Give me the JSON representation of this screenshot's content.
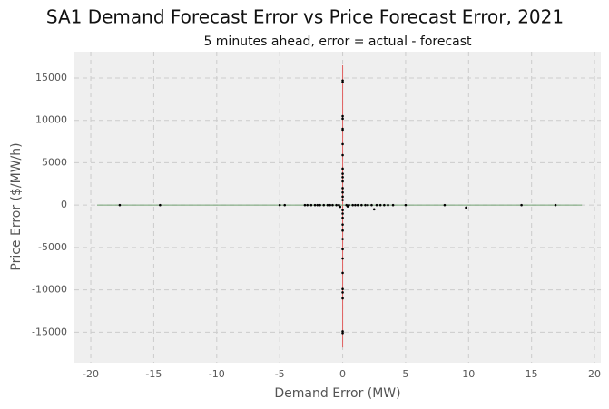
{
  "chart_data": {
    "type": "scatter",
    "title": "SA1 Demand Forecast Error vs Price Forecast Error, 2021",
    "subtitle": "5 minutes ahead, error = actual - forecast",
    "x_label": "Demand Error (MW)",
    "y_label": "Price Error ($/MW/h)",
    "x": [
      -17.7,
      -14.5,
      -5,
      -4.6,
      -3,
      -2.8,
      -2.5,
      -2.2,
      -2,
      -1.8,
      -1.5,
      -1.2,
      -1,
      -0.8,
      -0.5,
      -0.3,
      0.3,
      0.5,
      0.8,
      1,
      1.2,
      1.5,
      1.8,
      2,
      2.3,
      2.7,
      3,
      3.3,
      3.6,
      4,
      5,
      8.1,
      9.8,
      14.2,
      16.9,
      2.5,
      -0.2,
      0.4,
      0,
      0,
      0,
      0,
      0,
      0,
      0,
      0,
      0,
      0,
      0,
      0,
      0,
      0,
      0,
      0,
      0,
      0,
      0,
      0,
      0,
      0,
      0,
      0,
      0,
      0,
      0,
      0,
      0,
      0
    ],
    "values": [
      0,
      0,
      0,
      0,
      0,
      0,
      0,
      0,
      0,
      0,
      0,
      0,
      0,
      0,
      0,
      0,
      0,
      0,
      0,
      0,
      0,
      0,
      0,
      0,
      0,
      0,
      0,
      0,
      0,
      0,
      0,
      0,
      -300,
      0,
      0,
      -500,
      -200,
      -150,
      14700,
      14500,
      10500,
      10200,
      9000,
      8800,
      7200,
      5900,
      4300,
      3700,
      3300,
      2800,
      2000,
      1500,
      1000,
      600,
      -600,
      -1000,
      -1500,
      -2300,
      -3000,
      -4000,
      -5200,
      -6300,
      -8000,
      -9900,
      -10300,
      -11000,
      -14900,
      -15100
    ],
    "color": "#000000",
    "vline": {
      "x": 0,
      "ymin": -16800,
      "ymax": 16500,
      "color": "#e06060"
    },
    "hline": {
      "y": 0,
      "xmin": -19.5,
      "xmax": 19,
      "color": "#70a070"
    },
    "xlim": [
      -21.3,
      20.5
    ],
    "xticks": [
      -20,
      -15,
      -10,
      -5,
      0,
      5,
      10,
      15,
      20
    ],
    "ylim": [
      -18600,
      18100
    ],
    "yticks": [
      -15000,
      -10000,
      -5000,
      0,
      5000,
      10000,
      15000
    ],
    "grid": true
  }
}
